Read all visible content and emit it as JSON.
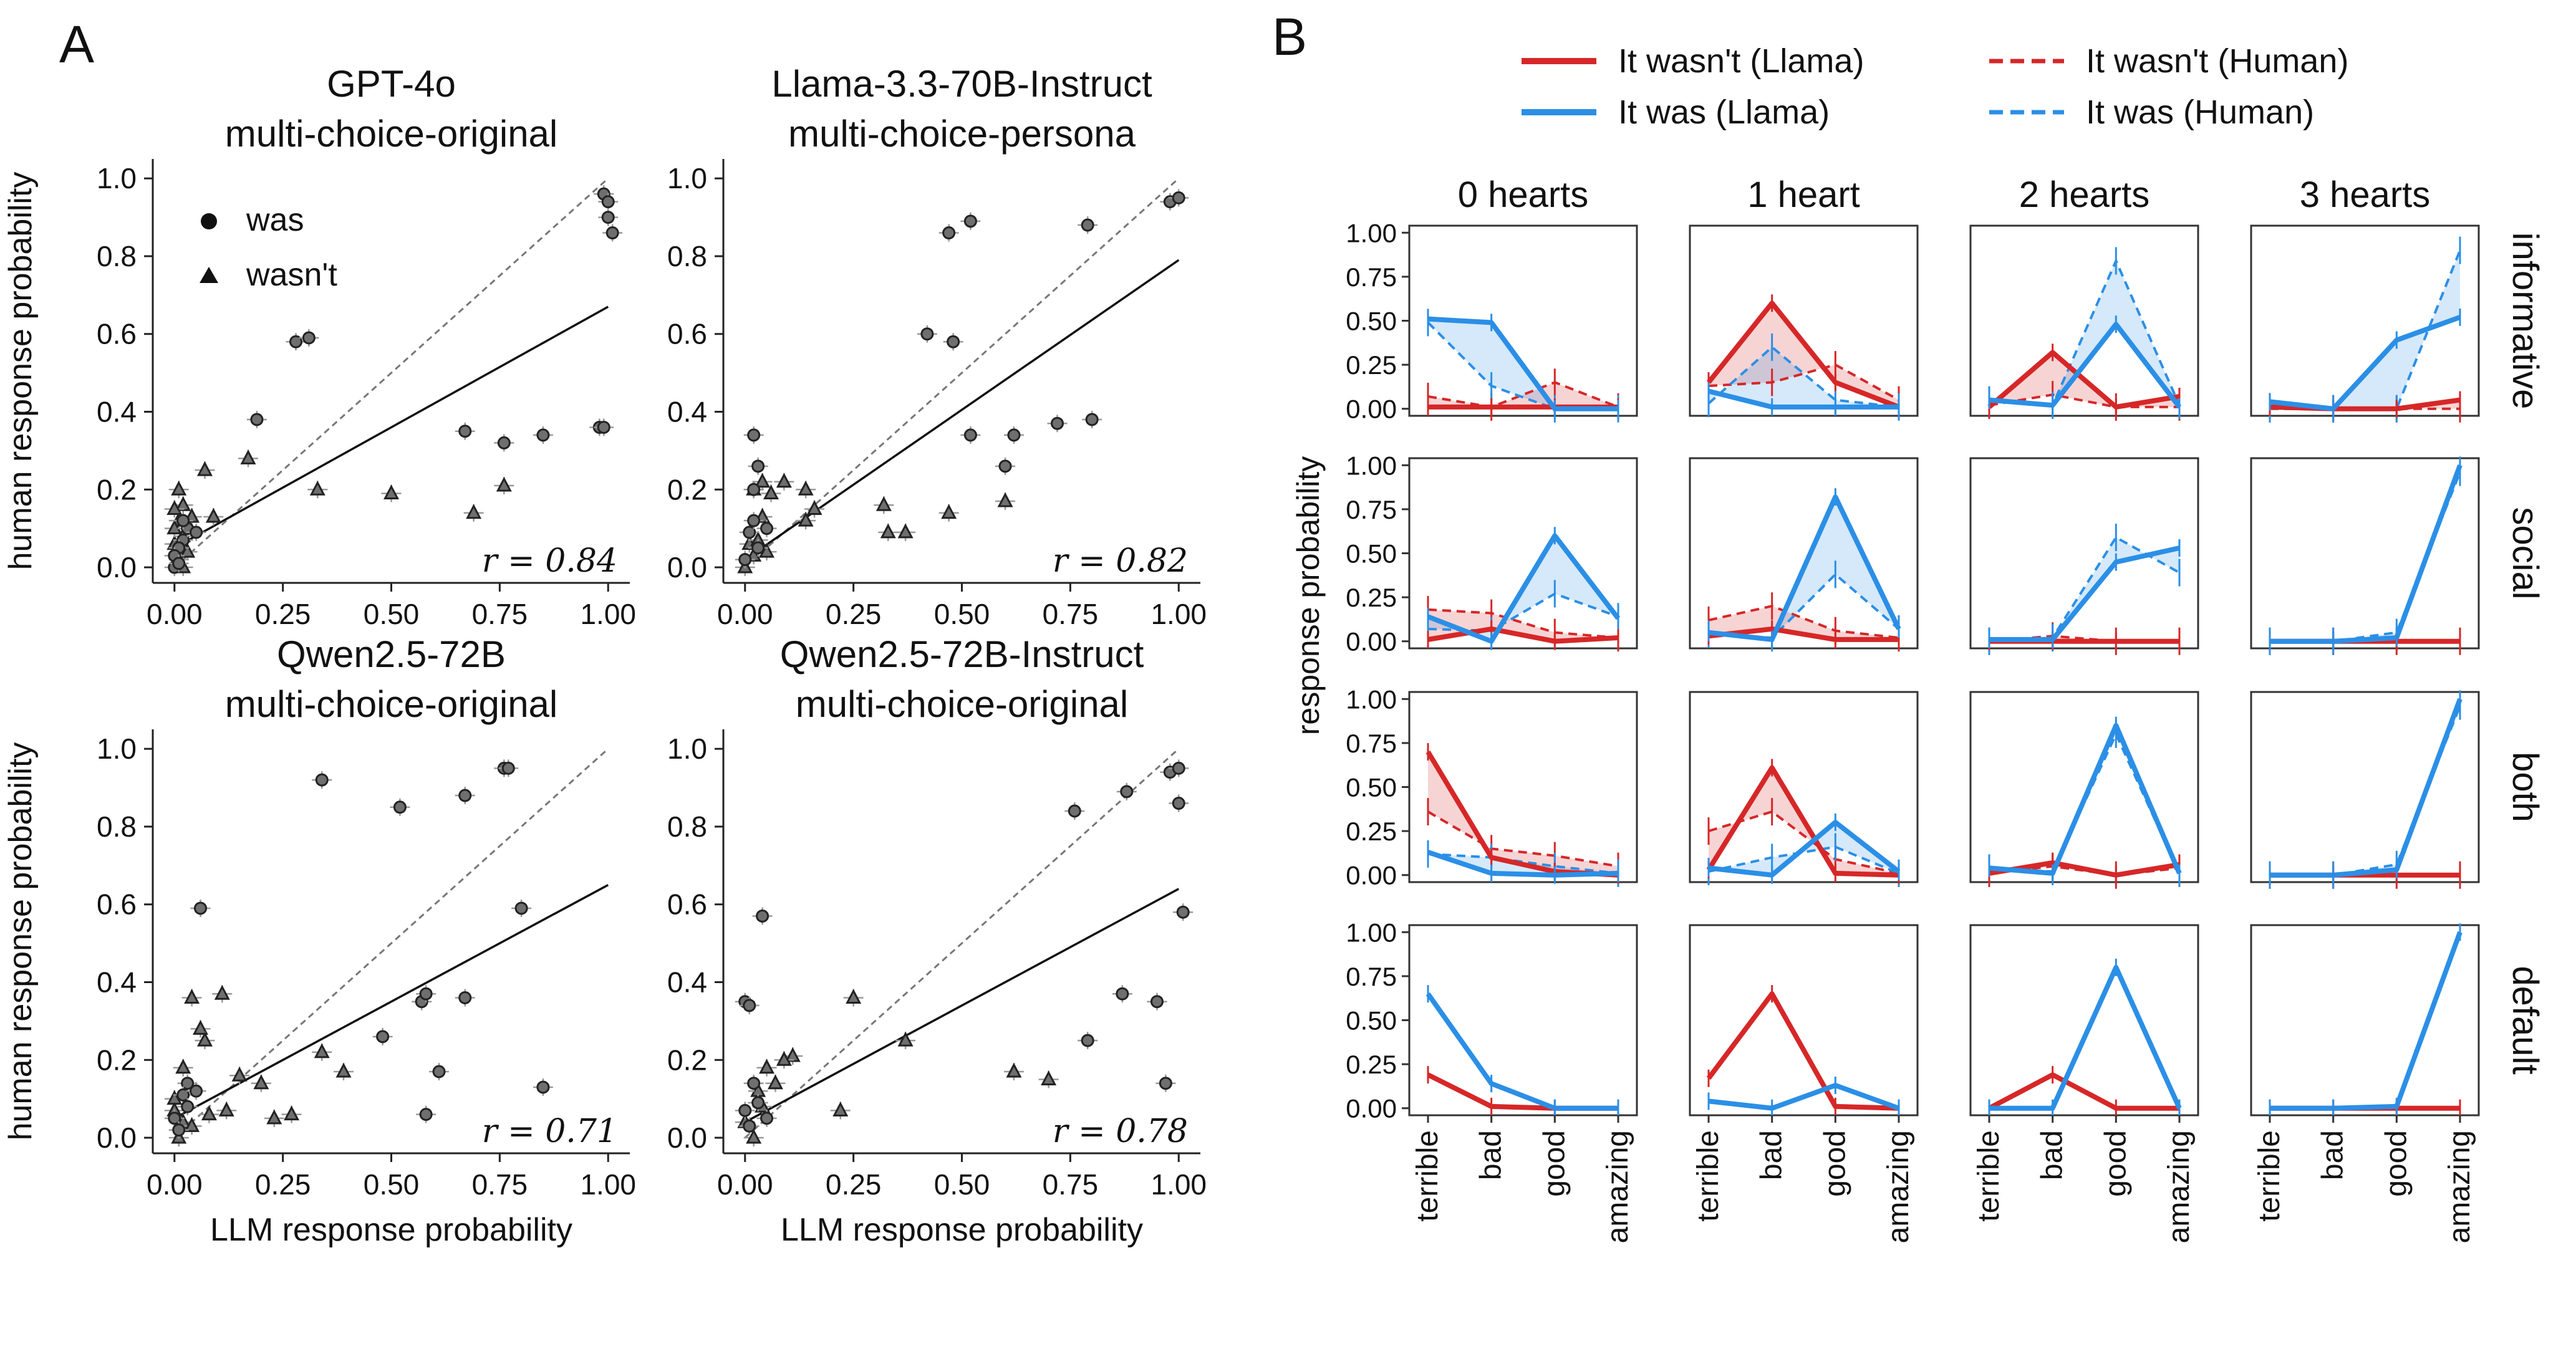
{
  "panel_labels": [
    "A",
    "B"
  ],
  "marker_legend": [
    {
      "label": "was",
      "marker": "circle"
    },
    {
      "label": "wasn't",
      "marker": "triangle"
    }
  ],
  "colors": {
    "llama_wasnt": "#d62728",
    "llama_was": "#2b8fe6",
    "scatter_marker": "#6f6f6f",
    "scatter_edge": "#222222"
  },
  "line_legend": [
    {
      "label": "It wasn't (Llama)",
      "color": "#d62728",
      "dash": false
    },
    {
      "label": "It was (Llama)",
      "color": "#2b8fe6",
      "dash": false
    },
    {
      "label": "It wasn't (Human)",
      "color": "#d62728",
      "dash": true
    },
    {
      "label": "It was (Human)",
      "color": "#2b8fe6",
      "dash": true
    }
  ],
  "chart_data": [
    {
      "type": "scatter",
      "title_line1": "GPT-4o",
      "title_line2": "multi-choice-original",
      "xlabel": "",
      "ylabel": "human response probability",
      "xlim": [
        -0.05,
        1.05
      ],
      "ylim": [
        -0.04,
        1.05
      ],
      "xticks": [
        "0.00",
        "0.25",
        "0.50",
        "0.75",
        "1.00"
      ],
      "yticks": [
        "0.0",
        "0.2",
        "0.4",
        "0.6",
        "0.8",
        "1.0"
      ],
      "r_label": "r = 0.84",
      "fit": {
        "slope": 0.62,
        "intercept": 0.05
      },
      "points_was": [
        [
          0.28,
          0.58
        ],
        [
          0.31,
          0.59
        ],
        [
          0.19,
          0.38
        ],
        [
          0.67,
          0.35
        ],
        [
          0.76,
          0.32
        ],
        [
          0.85,
          0.34
        ],
        [
          0.98,
          0.36
        ],
        [
          0.99,
          0.36
        ],
        [
          0.99,
          0.96
        ],
        [
          1.0,
          0.9
        ],
        [
          1.0,
          0.94
        ],
        [
          1.01,
          0.86
        ],
        [
          0.02,
          0.07
        ],
        [
          0.01,
          0.05
        ],
        [
          0.0,
          0.03
        ],
        [
          0.03,
          0.1
        ],
        [
          0.0,
          0.0
        ],
        [
          0.01,
          0.01
        ],
        [
          0.02,
          0.12
        ],
        [
          0.05,
          0.09
        ]
      ],
      "points_wasnt": [
        [
          0.07,
          0.25
        ],
        [
          0.17,
          0.28
        ],
        [
          0.33,
          0.2
        ],
        [
          0.5,
          0.19
        ],
        [
          0.69,
          0.14
        ],
        [
          0.76,
          0.21
        ],
        [
          0.02,
          0.16
        ],
        [
          0.01,
          0.2
        ],
        [
          0.0,
          0.15
        ],
        [
          0.01,
          0.12
        ],
        [
          0.02,
          0.08
        ],
        [
          0.04,
          0.13
        ],
        [
          0.09,
          0.13
        ],
        [
          0.0,
          0.06
        ],
        [
          0.01,
          0.02
        ],
        [
          0.03,
          0.04
        ],
        [
          0.0,
          0.1
        ],
        [
          0.02,
          0.0
        ]
      ]
    },
    {
      "type": "scatter",
      "title_line1": "Llama-3.3-70B-Instruct",
      "title_line2": "multi-choice-persona",
      "xlabel": "",
      "ylabel": "",
      "xlim": [
        -0.05,
        1.05
      ],
      "ylim": [
        -0.04,
        1.05
      ],
      "xticks": [
        "0.00",
        "0.25",
        "0.50",
        "0.75",
        "1.00"
      ],
      "yticks": [
        "0.0",
        "0.2",
        "0.4",
        "0.6",
        "0.8",
        "1.0"
      ],
      "r_label": "r = 0.82",
      "fit": {
        "slope": 0.77,
        "intercept": 0.02
      },
      "points_was": [
        [
          0.47,
          0.86
        ],
        [
          0.52,
          0.89
        ],
        [
          0.79,
          0.88
        ],
        [
          0.98,
          0.94
        ],
        [
          1.0,
          0.95
        ],
        [
          0.42,
          0.6
        ],
        [
          0.48,
          0.58
        ],
        [
          0.02,
          0.34
        ],
        [
          0.03,
          0.26
        ],
        [
          0.02,
          0.2
        ],
        [
          0.6,
          0.26
        ],
        [
          0.72,
          0.37
        ],
        [
          0.8,
          0.38
        ],
        [
          0.52,
          0.34
        ],
        [
          0.62,
          0.34
        ],
        [
          0.01,
          0.09
        ],
        [
          0.03,
          0.05
        ],
        [
          0.0,
          0.02
        ],
        [
          0.02,
          0.12
        ],
        [
          0.05,
          0.1
        ]
      ],
      "points_wasnt": [
        [
          0.32,
          0.16
        ],
        [
          0.47,
          0.14
        ],
        [
          0.6,
          0.17
        ],
        [
          0.33,
          0.09
        ],
        [
          0.37,
          0.09
        ],
        [
          0.14,
          0.12
        ],
        [
          0.16,
          0.15
        ],
        [
          0.06,
          0.19
        ],
        [
          0.02,
          0.2
        ],
        [
          0.04,
          0.22
        ],
        [
          0.09,
          0.22
        ],
        [
          0.14,
          0.2
        ],
        [
          0.04,
          0.13
        ],
        [
          0.01,
          0.06
        ],
        [
          0.0,
          0.0
        ],
        [
          0.02,
          0.03
        ],
        [
          0.03,
          0.07
        ],
        [
          0.05,
          0.04
        ]
      ]
    },
    {
      "type": "scatter",
      "title_line1": "Qwen2.5-72B",
      "title_line2": "multi-choice-original",
      "xlabel": "LLM response probability",
      "ylabel": "human response probability",
      "xlim": [
        -0.05,
        1.05
      ],
      "ylim": [
        -0.04,
        1.05
      ],
      "xticks": [
        "0.00",
        "0.25",
        "0.50",
        "0.75",
        "1.00"
      ],
      "yticks": [
        "0.0",
        "0.2",
        "0.4",
        "0.6",
        "0.8",
        "1.0"
      ],
      "r_label": "r = 0.71",
      "fit": {
        "slope": 0.6,
        "intercept": 0.05
      },
      "points_was": [
        [
          0.34,
          0.92
        ],
        [
          0.52,
          0.85
        ],
        [
          0.67,
          0.88
        ],
        [
          0.76,
          0.95
        ],
        [
          0.77,
          0.95
        ],
        [
          0.8,
          0.59
        ],
        [
          0.06,
          0.59
        ],
        [
          0.48,
          0.26
        ],
        [
          0.57,
          0.35
        ],
        [
          0.58,
          0.37
        ],
        [
          0.67,
          0.36
        ],
        [
          0.61,
          0.17
        ],
        [
          0.58,
          0.06
        ],
        [
          0.85,
          0.13
        ],
        [
          0.03,
          0.14
        ],
        [
          0.02,
          0.11
        ],
        [
          0.0,
          0.05
        ],
        [
          0.01,
          0.02
        ],
        [
          0.03,
          0.08
        ],
        [
          0.05,
          0.12
        ]
      ],
      "points_wasnt": [
        [
          0.04,
          0.36
        ],
        [
          0.11,
          0.37
        ],
        [
          0.06,
          0.28
        ],
        [
          0.07,
          0.25
        ],
        [
          0.34,
          0.22
        ],
        [
          0.39,
          0.17
        ],
        [
          0.2,
          0.14
        ],
        [
          0.15,
          0.16
        ],
        [
          0.12,
          0.07
        ],
        [
          0.27,
          0.06
        ],
        [
          0.23,
          0.05
        ],
        [
          0.08,
          0.06
        ],
        [
          0.02,
          0.18
        ],
        [
          0.0,
          0.1
        ],
        [
          0.01,
          0.0
        ],
        [
          0.02,
          0.04
        ],
        [
          0.04,
          0.03
        ],
        [
          0.0,
          0.07
        ]
      ]
    },
    {
      "type": "scatter",
      "title_line1": "Qwen2.5-72B-Instruct",
      "title_line2": "multi-choice-original",
      "xlabel": "LLM response probability",
      "ylabel": "",
      "xlim": [
        -0.05,
        1.05
      ],
      "ylim": [
        -0.04,
        1.05
      ],
      "xticks": [
        "0.00",
        "0.25",
        "0.50",
        "0.75",
        "1.00"
      ],
      "yticks": [
        "0.0",
        "0.2",
        "0.4",
        "0.6",
        "0.8",
        "1.0"
      ],
      "r_label": "r = 0.78",
      "fit": {
        "slope": 0.6,
        "intercept": 0.04
      },
      "points_was": [
        [
          0.04,
          0.57
        ],
        [
          0.76,
          0.84
        ],
        [
          0.88,
          0.89
        ],
        [
          0.98,
          0.94
        ],
        [
          1.0,
          0.95
        ],
        [
          1.0,
          0.86
        ],
        [
          1.01,
          0.58
        ],
        [
          0.87,
          0.37
        ],
        [
          0.95,
          0.35
        ],
        [
          0.79,
          0.25
        ],
        [
          0.97,
          0.14
        ],
        [
          0.0,
          0.35
        ],
        [
          0.01,
          0.34
        ],
        [
          0.02,
          0.14
        ],
        [
          0.0,
          0.07
        ],
        [
          0.01,
          0.03
        ],
        [
          0.03,
          0.09
        ],
        [
          0.05,
          0.05
        ]
      ],
      "points_wasnt": [
        [
          0.25,
          0.36
        ],
        [
          0.37,
          0.25
        ],
        [
          0.62,
          0.17
        ],
        [
          0.7,
          0.15
        ],
        [
          0.22,
          0.07
        ],
        [
          0.11,
          0.21
        ],
        [
          0.09,
          0.2
        ],
        [
          0.05,
          0.18
        ],
        [
          0.07,
          0.14
        ],
        [
          0.03,
          0.12
        ],
        [
          0.0,
          0.04
        ],
        [
          0.02,
          0.0
        ],
        [
          0.04,
          0.08
        ]
      ]
    },
    {
      "type": "line",
      "subtype": "small_multiples",
      "x_categories": [
        "terrible",
        "bad",
        "good",
        "amazing"
      ],
      "columns": [
        "0 hearts",
        "1 heart",
        "2 hearts",
        "3 hearts"
      ],
      "rows": [
        "informative",
        "social",
        "both",
        "default"
      ],
      "ylabel": "response probability",
      "yticks": [
        "0.00",
        "0.25",
        "0.50",
        "0.75",
        "1.00"
      ],
      "ylim": [
        -0.04,
        1.04
      ],
      "series_names": [
        "It wasn't (Llama)",
        "It was (Llama)",
        "It wasn't (Human)",
        "It was (Human)"
      ],
      "panels": [
        {
          "row": "informative",
          "col": "0 hearts",
          "wasnt_llama": [
            0.01,
            0.01,
            0.01,
            0.01
          ],
          "was_llama": [
            0.51,
            0.49,
            0.0,
            0.0
          ],
          "wasnt_human": [
            0.07,
            0.01,
            0.15,
            0.01
          ],
          "was_human": [
            0.49,
            0.13,
            0.0,
            0.0
          ]
        },
        {
          "row": "informative",
          "col": "1 heart",
          "wasnt_llama": [
            0.15,
            0.6,
            0.15,
            0.01
          ],
          "was_llama": [
            0.1,
            0.01,
            0.01,
            0.01
          ],
          "wasnt_human": [
            0.13,
            0.15,
            0.25,
            0.05
          ],
          "was_human": [
            0.03,
            0.35,
            0.05,
            0.01
          ]
        },
        {
          "row": "informative",
          "col": "2 hearts",
          "wasnt_llama": [
            0.01,
            0.32,
            0.01,
            0.07
          ],
          "was_llama": [
            0.05,
            0.02,
            0.48,
            0.01
          ],
          "wasnt_human": [
            0.02,
            0.08,
            0.01,
            0.01
          ],
          "was_human": [
            0.05,
            0.02,
            0.84,
            0.02
          ]
        },
        {
          "row": "informative",
          "col": "3 hearts",
          "wasnt_llama": [
            0.01,
            0.0,
            0.0,
            0.05
          ],
          "was_llama": [
            0.04,
            0.0,
            0.39,
            0.52
          ],
          "wasnt_human": [
            0.0,
            0.0,
            0.0,
            0.0
          ],
          "was_human": [
            0.0,
            0.0,
            0.0,
            0.9
          ]
        },
        {
          "row": "social",
          "col": "0 hearts",
          "wasnt_llama": [
            0.01,
            0.07,
            0.0,
            0.02
          ],
          "was_llama": [
            0.14,
            0.0,
            0.6,
            0.13
          ],
          "wasnt_human": [
            0.18,
            0.16,
            0.05,
            0.02
          ],
          "was_human": [
            0.07,
            0.06,
            0.27,
            0.14
          ]
        },
        {
          "row": "social",
          "col": "1 heart",
          "wasnt_llama": [
            0.03,
            0.07,
            0.01,
            0.01
          ],
          "was_llama": [
            0.05,
            0.01,
            0.82,
            0.07
          ],
          "wasnt_human": [
            0.12,
            0.2,
            0.06,
            0.02
          ],
          "was_human": [
            0.04,
            0.02,
            0.38,
            0.07
          ]
        },
        {
          "row": "social",
          "col": "2 hearts",
          "wasnt_llama": [
            0.0,
            0.0,
            0.0,
            0.0
          ],
          "was_llama": [
            0.01,
            0.01,
            0.45,
            0.53
          ],
          "wasnt_human": [
            0.0,
            0.03,
            0.0,
            0.0
          ],
          "was_human": [
            0.0,
            0.02,
            0.59,
            0.39
          ]
        },
        {
          "row": "social",
          "col": "3 hearts",
          "wasnt_llama": [
            0.0,
            0.0,
            0.0,
            0.0
          ],
          "was_llama": [
            0.0,
            0.0,
            0.02,
            1.0
          ],
          "wasnt_human": [
            0.0,
            0.0,
            0.0,
            0.0
          ],
          "was_human": [
            0.0,
            0.0,
            0.05,
            0.96
          ]
        },
        {
          "row": "both",
          "col": "0 hearts",
          "wasnt_llama": [
            0.7,
            0.1,
            0.02,
            0.0
          ],
          "was_llama": [
            0.13,
            0.01,
            0.0,
            0.01
          ],
          "wasnt_human": [
            0.36,
            0.15,
            0.11,
            0.05
          ],
          "was_human": [
            0.12,
            0.1,
            0.05,
            0.01
          ]
        },
        {
          "row": "both",
          "col": "1 heart",
          "wasnt_llama": [
            0.03,
            0.61,
            0.01,
            0.0
          ],
          "was_llama": [
            0.04,
            0.0,
            0.3,
            0.02
          ],
          "wasnt_human": [
            0.25,
            0.36,
            0.09,
            0.01
          ],
          "was_human": [
            0.02,
            0.1,
            0.16,
            0.01
          ]
        },
        {
          "row": "both",
          "col": "2 hearts",
          "wasnt_llama": [
            0.01,
            0.07,
            0.0,
            0.06
          ],
          "was_llama": [
            0.04,
            0.01,
            0.85,
            0.01
          ],
          "wasnt_human": [
            0.01,
            0.05,
            0.0,
            0.04
          ],
          "was_human": [
            0.04,
            0.02,
            0.8,
            0.01
          ]
        },
        {
          "row": "both",
          "col": "3 hearts",
          "wasnt_llama": [
            0.0,
            0.0,
            0.0,
            0.0
          ],
          "was_llama": [
            0.0,
            0.0,
            0.03,
            1.0
          ],
          "wasnt_human": [
            0.0,
            0.0,
            0.0,
            0.0
          ],
          "was_human": [
            0.0,
            0.0,
            0.06,
            0.96
          ]
        },
        {
          "row": "default",
          "col": "0 hearts",
          "wasnt_llama": [
            0.19,
            0.01,
            0.0,
            0.0
          ],
          "was_llama": [
            0.65,
            0.14,
            0.0,
            0.0
          ]
        },
        {
          "row": "default",
          "col": "1 heart",
          "wasnt_llama": [
            0.17,
            0.65,
            0.01,
            0.0
          ],
          "was_llama": [
            0.04,
            0.0,
            0.13,
            0.0
          ]
        },
        {
          "row": "default",
          "col": "2 hearts",
          "wasnt_llama": [
            0.0,
            0.19,
            0.0,
            0.0
          ],
          "was_llama": [
            0.0,
            0.0,
            0.8,
            0.0
          ]
        },
        {
          "row": "default",
          "col": "3 hearts",
          "wasnt_llama": [
            0.0,
            0.0,
            0.0,
            0.0
          ],
          "was_llama": [
            0.0,
            0.0,
            0.01,
            1.0
          ]
        }
      ]
    }
  ]
}
